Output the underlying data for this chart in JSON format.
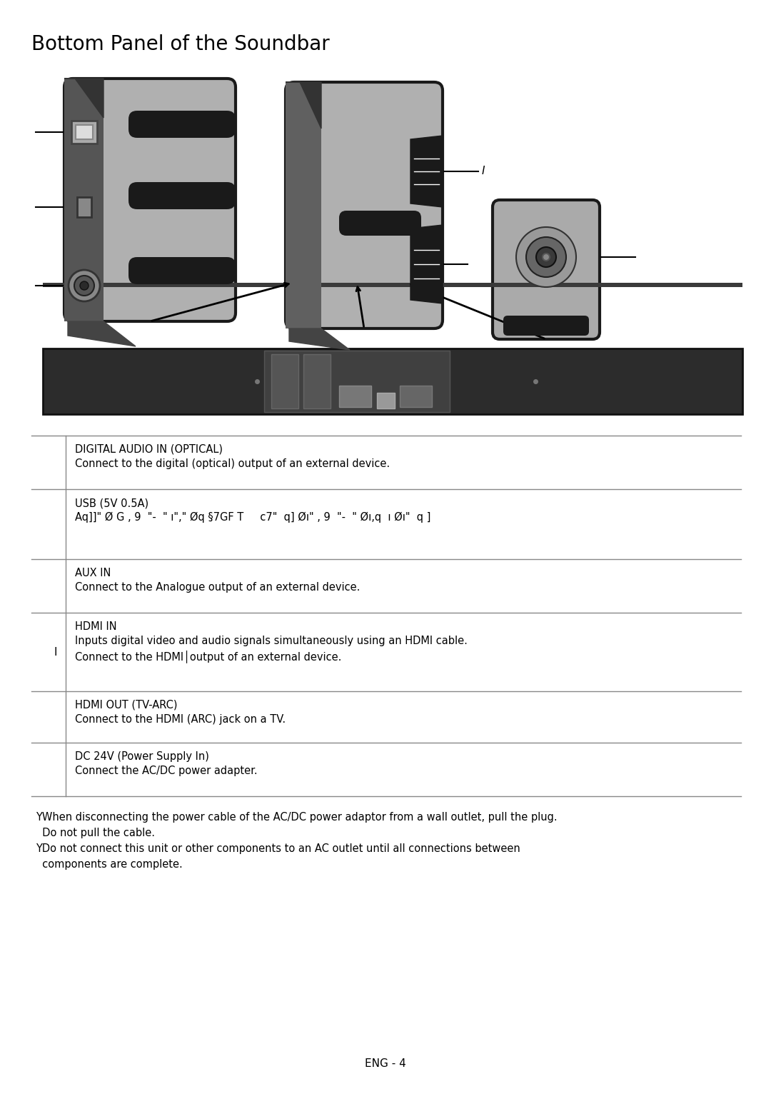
{
  "title": "Bottom Panel of the Soundbar",
  "title_fontsize": 20,
  "bg_color": "#ffffff",
  "text_color": "#000000",
  "table_rows": [
    {
      "icon": "",
      "label": "DIGITAL AUDIO IN (OPTICAL)",
      "desc": "Connect to the digital (optical) output of an external device.",
      "desc2": ""
    },
    {
      "icon": "",
      "label": "USB (5V 0.5A)",
      "desc": "Aq]]\" Ø G , 9  \"-  \" ı\",\" Øq §7GF T     c7\"  q] Øı\" , 9  \"-  \" Øı,q  ı Øı\"  q ]",
      "desc2": ""
    },
    {
      "icon": "",
      "label": "AUX IN",
      "desc": "Connect to the Analogue output of an external device.",
      "desc2": ""
    },
    {
      "icon": "I",
      "label": "HDMI IN",
      "desc": "Inputs digital video and audio signals simultaneously using an HDMI cable.",
      "desc2": "Connect to the HDMI│output of an external device."
    },
    {
      "icon": "",
      "label": "HDMI OUT (TV-ARC)",
      "desc": "Connect to the HDMI (ARC) jack on a TV.",
      "desc2": ""
    },
    {
      "icon": "",
      "label": "DC 24V (Power Supply In)",
      "desc": "Connect the AC/DC power adapter.",
      "desc2": ""
    }
  ],
  "notes": [
    "YWhen disconnecting the power cable of the AC/DC power adaptor from a wall outlet, pull the plug.",
    "  Do not pull the cable.",
    "YDo not connect this unit or other components to an AC outlet until all connections between",
    "  components are complete."
  ],
  "footer": "ENG - 4",
  "label_fontsize": 10.5,
  "desc_fontsize": 10.5,
  "note_fontsize": 10.5
}
